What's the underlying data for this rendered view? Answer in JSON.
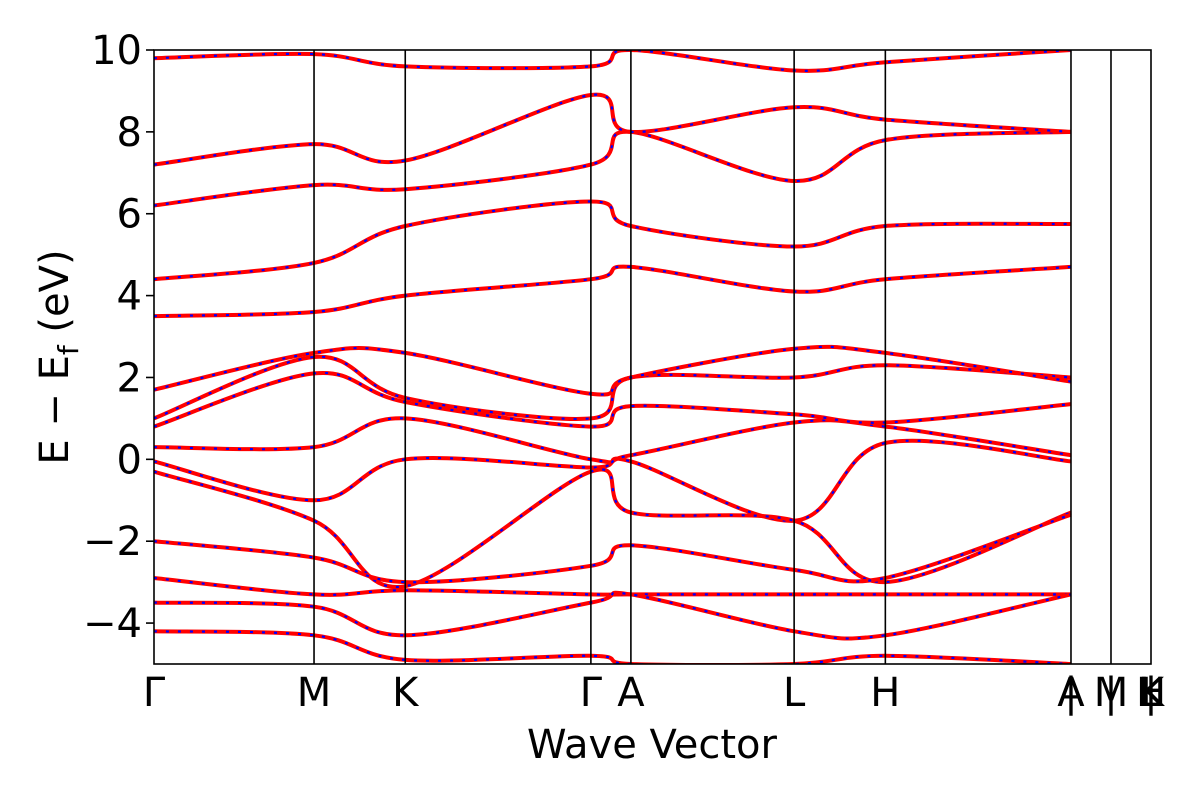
{
  "chart_data": {
    "type": "line",
    "title": "",
    "xlabel": "Wave Vector",
    "ylabel_parts": {
      "main": "E − E",
      "sub": "f",
      "tail": " (eV)"
    },
    "ylim": [
      -5,
      10
    ],
    "yticks": [
      -4,
      -2,
      0,
      2,
      4,
      6,
      8,
      10
    ],
    "ytick_labels": [
      "−4",
      "−2",
      "0",
      "2",
      "4",
      "6",
      "8",
      "10"
    ],
    "k_path": [
      {
        "label": "Γ",
        "x": 0.0
      },
      {
        "label": "M",
        "x": 1.0
      },
      {
        "label": "K",
        "x": 1.57
      },
      {
        "label": "Γ",
        "x": 2.73
      },
      {
        "label": "A",
        "x": 2.98
      },
      {
        "label": "L",
        "x": 4.0
      },
      {
        "label": "H",
        "x": 4.57
      },
      {
        "label": "A",
        "x": 5.73
      },
      {
        "label": "|",
        "x": 5.73
      },
      {
        "label": "M",
        "x": 5.98
      },
      {
        "label": "|",
        "x": 5.98
      },
      {
        "label": "L",
        "x": 6.23
      },
      {
        "label": "|",
        "x": 6.23
      },
      {
        "label": "K",
        "x": 6.23
      },
      {
        "label": "H",
        "x": 6.25
      }
    ],
    "xlim": [
      0,
      6.23
    ],
    "grid": false,
    "legend": "none",
    "series": [
      {
        "color": "#ff0000",
        "style": "solid",
        "bands": [
          {
            "x": [
              0,
              1.0,
              1.57,
              2.73,
              2.98,
              4.0,
              4.57,
              5.73
            ],
            "y": [
              -0.05,
              -1.0,
              0.0,
              -0.2,
              -0.05,
              -1.5,
              0.4,
              -0.05
            ]
          },
          {
            "x": [
              0,
              1.0,
              1.57,
              2.73,
              2.98,
              4.0,
              4.57,
              5.73
            ],
            "y": [
              -0.3,
              -1.5,
              -3.1,
              -0.3,
              -1.3,
              -1.5,
              -3.0,
              -1.3
            ]
          },
          {
            "x": [
              0,
              1.0,
              1.57,
              2.73,
              2.98,
              4.0,
              4.57,
              5.73
            ],
            "y": [
              0.3,
              0.3,
              1.0,
              0.0,
              0.1,
              0.9,
              0.8,
              0.1
            ]
          },
          {
            "x": [
              0,
              1.0,
              1.57,
              2.73,
              2.98,
              4.0,
              4.57,
              5.73
            ],
            "y": [
              0.8,
              2.1,
              1.4,
              0.8,
              1.3,
              1.1,
              0.9,
              1.35
            ]
          },
          {
            "x": [
              0,
              1.0,
              1.57,
              2.73,
              2.98,
              4.0,
              4.57,
              5.73
            ],
            "y": [
              1.0,
              2.5,
              1.5,
              1.0,
              2.0,
              2.0,
              2.3,
              2.0
            ]
          },
          {
            "x": [
              0,
              1.0,
              1.57,
              2.73,
              2.98,
              4.0,
              4.57,
              5.73
            ],
            "y": [
              1.7,
              2.6,
              2.6,
              1.6,
              2.0,
              2.7,
              2.6,
              1.9
            ]
          },
          {
            "x": [
              0,
              1.0,
              1.57,
              2.73,
              2.98,
              4.0,
              4.57,
              5.73
            ],
            "y": [
              3.5,
              3.6,
              4.0,
              4.4,
              4.7,
              4.1,
              4.4,
              4.7
            ]
          },
          {
            "x": [
              0,
              1.0,
              1.57,
              2.73,
              2.98,
              4.0,
              4.57,
              5.73
            ],
            "y": [
              4.4,
              4.8,
              5.7,
              6.3,
              5.7,
              5.2,
              5.7,
              5.75
            ]
          },
          {
            "x": [
              0,
              1.0,
              1.57,
              2.73,
              2.98,
              4.0,
              4.57,
              5.73
            ],
            "y": [
              6.2,
              6.7,
              6.6,
              7.2,
              8.0,
              6.8,
              7.8,
              8.0
            ]
          },
          {
            "x": [
              0,
              1.0,
              1.57,
              2.73,
              2.98,
              4.0,
              4.57,
              5.73
            ],
            "y": [
              7.2,
              7.7,
              7.3,
              8.9,
              8.0,
              8.6,
              8.3,
              8.0
            ]
          },
          {
            "x": [
              0,
              1.0,
              1.57,
              2.73,
              2.98,
              4.0,
              4.57,
              5.73
            ],
            "y": [
              9.8,
              9.9,
              9.6,
              9.6,
              10.0,
              9.5,
              9.7,
              10.0
            ]
          },
          {
            "x": [
              0,
              1.0,
              1.57,
              2.73,
              2.98,
              4.0,
              4.57,
              5.73
            ],
            "y": [
              -2.0,
              -2.4,
              -3.0,
              -2.6,
              -2.1,
              -2.7,
              -2.9,
              -1.35
            ]
          },
          {
            "x": [
              0,
              1.0,
              1.57,
              2.73,
              2.98,
              4.0,
              4.57,
              5.73
            ],
            "y": [
              -2.9,
              -3.3,
              -3.2,
              -3.3,
              -3.3,
              -3.3,
              -3.3,
              -3.3
            ]
          },
          {
            "x": [
              0,
              1.0,
              1.57,
              2.73,
              2.98,
              4.0,
              4.57,
              5.73
            ],
            "y": [
              -3.5,
              -3.6,
              -4.3,
              -3.5,
              -3.3,
              -4.2,
              -4.3,
              -3.3
            ]
          },
          {
            "x": [
              0,
              1.0,
              1.57,
              2.73,
              2.98,
              4.0,
              4.57,
              5.73
            ],
            "y": [
              -4.2,
              -4.3,
              -4.9,
              -4.8,
              -5.0,
              -5.0,
              -4.8,
              -5.0
            ]
          }
        ]
      },
      {
        "color": "#0000ff",
        "style": "dashed",
        "bands": "same_as_red"
      }
    ]
  }
}
